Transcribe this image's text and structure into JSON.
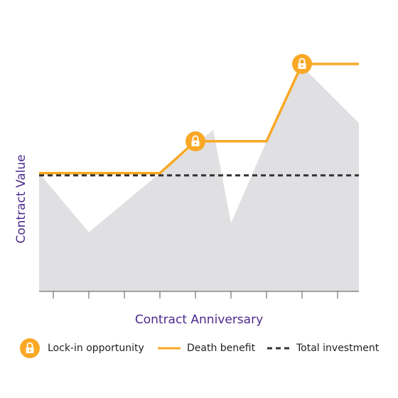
{
  "chart_data": {
    "type": "area",
    "xlabel": "Contract Anniversary",
    "ylabel": "Contract Value",
    "xlim": [
      0.6,
      9.6
    ],
    "xticks": [
      1,
      2,
      3,
      4,
      5,
      6,
      7,
      8,
      9
    ],
    "ylim": [
      0,
      100
    ],
    "area": {
      "color": "#e0e0e2",
      "x": [
        0.6,
        2,
        4,
        5.5,
        6,
        7,
        8,
        9.6
      ],
      "values": [
        52,
        26,
        52,
        71,
        30,
        66,
        99,
        74
      ]
    },
    "series": [
      {
        "name": "Death benefit",
        "color": "#f9a825",
        "dash": false,
        "x": [
          0.6,
          4,
          5,
          7,
          8,
          9.6
        ],
        "values": [
          52,
          52,
          66,
          66,
          100,
          100
        ]
      },
      {
        "name": "Total investment",
        "color": "#333333",
        "dash": true,
        "x": [
          0.6,
          9.6
        ],
        "values": [
          51,
          51
        ]
      }
    ],
    "markers": {
      "name": "Lock-in opportunity",
      "color": "#f9a825",
      "x": [
        5,
        8
      ],
      "values": [
        66,
        100
      ]
    }
  }
}
